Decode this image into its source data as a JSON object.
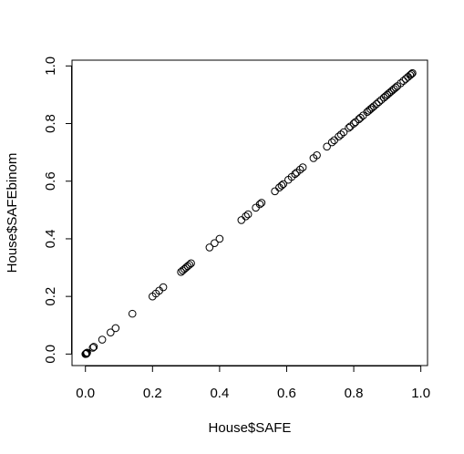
{
  "chart_data": {
    "type": "scatter",
    "xlabel": "House$SAFE",
    "ylabel": "House$SAFEbinom",
    "xlim": [
      -0.04,
      1.02
    ],
    "ylim": [
      -0.04,
      1.02
    ],
    "xticks": [
      "0.0",
      "0.2",
      "0.4",
      "0.6",
      "0.8",
      "1.0"
    ],
    "yticks": [
      "0.0",
      "0.2",
      "0.4",
      "0.6",
      "0.8",
      "1.0"
    ],
    "grid": false,
    "points": [
      [
        0.0,
        0.0
      ],
      [
        0.002,
        0.002
      ],
      [
        0.004,
        0.003
      ],
      [
        0.005,
        0.005
      ],
      [
        0.003,
        0.001
      ],
      [
        0.022,
        0.022
      ],
      [
        0.025,
        0.025
      ],
      [
        0.05,
        0.05
      ],
      [
        0.075,
        0.075
      ],
      [
        0.09,
        0.09
      ],
      [
        0.14,
        0.14
      ],
      [
        0.2,
        0.2
      ],
      [
        0.21,
        0.21
      ],
      [
        0.22,
        0.22
      ],
      [
        0.232,
        0.232
      ],
      [
        0.285,
        0.285
      ],
      [
        0.29,
        0.29
      ],
      [
        0.295,
        0.295
      ],
      [
        0.3,
        0.3
      ],
      [
        0.305,
        0.305
      ],
      [
        0.31,
        0.31
      ],
      [
        0.315,
        0.315
      ],
      [
        0.37,
        0.37
      ],
      [
        0.385,
        0.385
      ],
      [
        0.4,
        0.4
      ],
      [
        0.465,
        0.465
      ],
      [
        0.478,
        0.478
      ],
      [
        0.485,
        0.485
      ],
      [
        0.508,
        0.508
      ],
      [
        0.52,
        0.52
      ],
      [
        0.525,
        0.525
      ],
      [
        0.565,
        0.565
      ],
      [
        0.578,
        0.578
      ],
      [
        0.585,
        0.585
      ],
      [
        0.59,
        0.59
      ],
      [
        0.605,
        0.605
      ],
      [
        0.615,
        0.615
      ],
      [
        0.625,
        0.625
      ],
      [
        0.63,
        0.63
      ],
      [
        0.64,
        0.64
      ],
      [
        0.648,
        0.648
      ],
      [
        0.68,
        0.68
      ],
      [
        0.69,
        0.69
      ],
      [
        0.72,
        0.72
      ],
      [
        0.735,
        0.735
      ],
      [
        0.742,
        0.742
      ],
      [
        0.755,
        0.755
      ],
      [
        0.762,
        0.762
      ],
      [
        0.77,
        0.77
      ],
      [
        0.785,
        0.785
      ],
      [
        0.79,
        0.79
      ],
      [
        0.8,
        0.8
      ],
      [
        0.805,
        0.805
      ],
      [
        0.815,
        0.815
      ],
      [
        0.82,
        0.82
      ],
      [
        0.828,
        0.828
      ],
      [
        0.84,
        0.84
      ],
      [
        0.845,
        0.845
      ],
      [
        0.85,
        0.85
      ],
      [
        0.855,
        0.855
      ],
      [
        0.86,
        0.86
      ],
      [
        0.868,
        0.868
      ],
      [
        0.875,
        0.875
      ],
      [
        0.882,
        0.882
      ],
      [
        0.89,
        0.89
      ],
      [
        0.895,
        0.895
      ],
      [
        0.9,
        0.9
      ],
      [
        0.905,
        0.905
      ],
      [
        0.91,
        0.91
      ],
      [
        0.915,
        0.915
      ],
      [
        0.92,
        0.92
      ],
      [
        0.925,
        0.925
      ],
      [
        0.93,
        0.93
      ],
      [
        0.94,
        0.94
      ],
      [
        0.948,
        0.948
      ],
      [
        0.955,
        0.955
      ],
      [
        0.962,
        0.962
      ],
      [
        0.968,
        0.968
      ],
      [
        0.972,
        0.972
      ],
      [
        0.975,
        0.975
      ]
    ]
  }
}
